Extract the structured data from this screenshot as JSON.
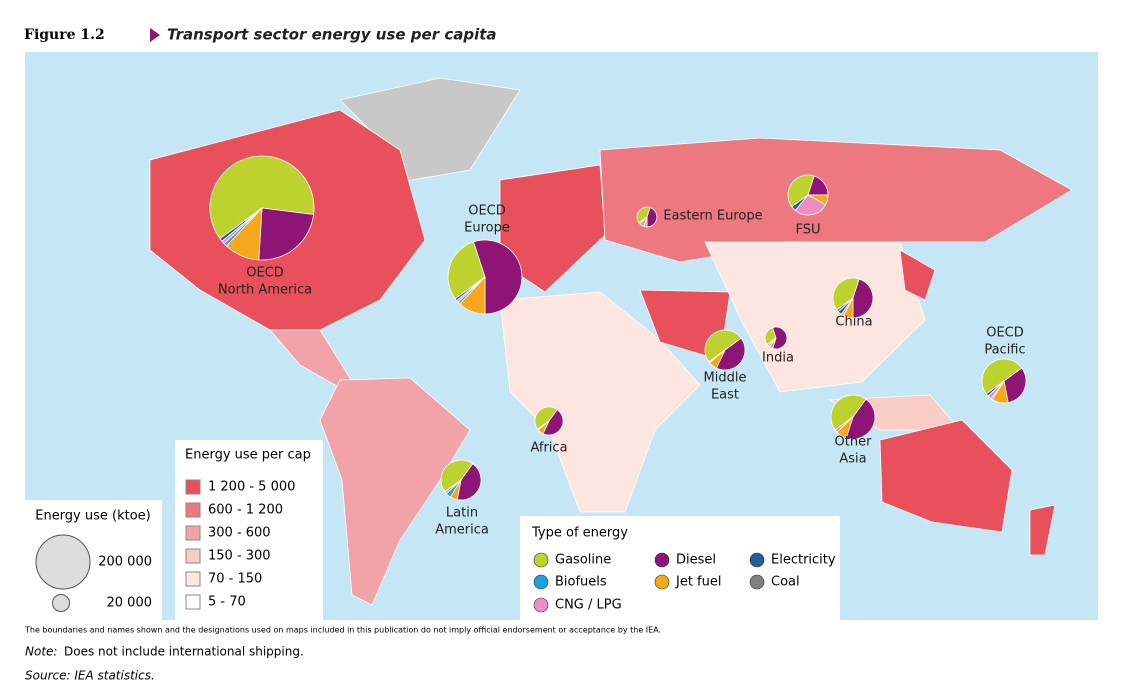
{
  "figure_label": "Figure 1.2",
  "title": "Transport sector energy use per capita",
  "energy_types": [
    {
      "name": "Gasoline",
      "color": "#bdd22f"
    },
    {
      "name": "Diesel",
      "color": "#8e1475"
    },
    {
      "name": "Jet fuel",
      "color": "#f5a81c"
    },
    {
      "name": "Biofuels",
      "color": "#1ea0dc"
    },
    {
      "name": "CNG / LPG",
      "color": "#f08cc0"
    },
    {
      "name": "Electricity",
      "color": "#1f5fa0"
    },
    {
      "name": "Coal",
      "color": "#808080"
    }
  ],
  "regions": [
    {
      "label": [
        "OECD",
        "North America"
      ],
      "energy_use": 742000,
      "shares": [
        62,
        24,
        11,
        1,
        1,
        1,
        0
      ]
    },
    {
      "label": [
        "OECD",
        "Europe"
      ],
      "energy_use": 375000,
      "shares": [
        30,
        55,
        12,
        1,
        1,
        1,
        0
      ]
    },
    {
      "label": [
        "Eastern Europe"
      ],
      "energy_use": 27000,
      "shares": [
        40,
        45,
        5,
        0,
        8,
        2,
        0
      ]
    },
    {
      "label": [
        "FSU"
      ],
      "energy_use": 110000,
      "shares": [
        40,
        20,
        8,
        0,
        28,
        4,
        0
      ]
    },
    {
      "label": [
        "China"
      ],
      "energy_use": 110000,
      "shares": [
        40,
        45,
        8,
        0,
        2,
        3,
        2
      ]
    },
    {
      "label": [
        "India"
      ],
      "energy_use": 33000,
      "shares": [
        30,
        60,
        5,
        0,
        3,
        2,
        0
      ]
    },
    {
      "label": [
        "Middle",
        "East"
      ],
      "energy_use": 110000,
      "shares": [
        50,
        42,
        7,
        0,
        1,
        0,
        0
      ]
    },
    {
      "label": [
        "Other",
        "Asia"
      ],
      "energy_use": 133000,
      "shares": [
        45,
        45,
        8,
        0,
        2,
        0,
        0
      ]
    },
    {
      "label": [
        "OECD",
        "Pacific"
      ],
      "energy_use": 133000,
      "shares": [
        50,
        32,
        12,
        1,
        3,
        2,
        0
      ]
    },
    {
      "label": [
        "Africa"
      ],
      "energy_use": 54000,
      "shares": [
        45,
        47,
        7,
        0,
        1,
        0,
        0
      ]
    },
    {
      "label": [
        "Latin",
        "America"
      ],
      "energy_use": 110000,
      "shares": [
        45,
        43,
        6,
        4,
        2,
        0,
        0
      ]
    }
  ],
  "size_legend": {
    "title": "Energy use (ktoe)",
    "entries": [
      {
        "value": 200000,
        "label": "200 000"
      },
      {
        "value": 20000,
        "label": "20 000"
      }
    ]
  },
  "color_legend": {
    "title": "Energy use per cap",
    "classes": [
      {
        "label": "1 200 - 5 000",
        "color": "#e8505b"
      },
      {
        "label": "600 - 1 200",
        "color": "#ee7880"
      },
      {
        "label": "300 - 600",
        "color": "#f2a3a8"
      },
      {
        "label": "150 - 300",
        "color": "#f8cdc6"
      },
      {
        "label": "70 - 150",
        "color": "#fde6e0"
      },
      {
        "label": "5 - 70",
        "color": "#ffffff"
      }
    ]
  },
  "energy_legend_title": "Type of energy",
  "disclaimer": "The boundaries and names shown and the designations used on maps included in this publication do not imply official endorsement or acceptance by the IEA.",
  "note_label": "Note:",
  "note_text": "Does not include international shipping.",
  "source": "Source: IEA statistics."
}
